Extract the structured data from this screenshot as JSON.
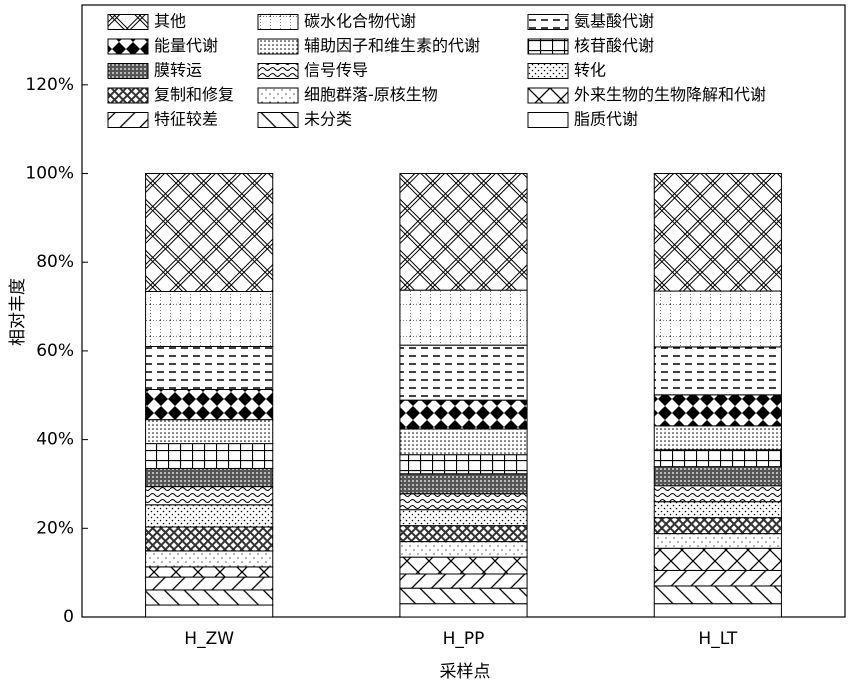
{
  "chart_data": {
    "type": "stacked_bar",
    "xlabel": "采样点",
    "ylabel": "相对丰度",
    "categories": [
      "H_ZW",
      "H_PP",
      "H_LT"
    ],
    "ylim": [
      0,
      138
    ],
    "yticks": [
      0,
      {
        "value": 20,
        "label": "20%"
      },
      {
        "value": 40,
        "label": "40%"
      },
      {
        "value": 60,
        "label": "60%"
      },
      {
        "value": 80,
        "label": "80%"
      },
      {
        "value": 100,
        "label": "100%"
      },
      {
        "value": 120,
        "label": "120%"
      }
    ],
    "legend": "upper left",
    "series": [
      {
        "name": "其他",
        "pattern": "crosshatch",
        "values": [
          26.6,
          26.3,
          26.5
        ]
      },
      {
        "name": "碳水化合物代谢",
        "pattern": "dotgrid",
        "values": [
          12.4,
          12.4,
          12.6
        ]
      },
      {
        "name": "氨基酸代谢",
        "pattern": "dash",
        "values": [
          9.7,
          12.4,
          10.8
        ]
      },
      {
        "name": "能量代谢",
        "pattern": "diamond",
        "values": [
          6.8,
          6.5,
          7.0
        ]
      },
      {
        "name": "辅助因子和维生素的代谢",
        "pattern": "dots",
        "values": [
          5.4,
          5.8,
          5.4
        ]
      },
      {
        "name": "核苷酸代谢",
        "pattern": "grid",
        "values": [
          5.6,
          4.3,
          3.8
        ]
      },
      {
        "name": "膜转运",
        "pattern": "dense",
        "values": [
          4.1,
          4.5,
          4.3
        ]
      },
      {
        "name": "信号传导",
        "pattern": "wave",
        "values": [
          4.1,
          3.6,
          3.6
        ]
      },
      {
        "name": "转化",
        "pattern": "sparsedots",
        "values": [
          5.0,
          3.6,
          3.6
        ]
      },
      {
        "name": "复制和修复",
        "pattern": "checker",
        "values": [
          5.4,
          3.6,
          3.6
        ]
      },
      {
        "name": "细胞群落-原核生物",
        "pattern": "finedots",
        "values": [
          3.6,
          3.5,
          3.3
        ]
      },
      {
        "name": "外来生物的生物降解和代谢",
        "pattern": "xcross",
        "values": [
          2.3,
          3.8,
          5.0
        ]
      },
      {
        "name": "特征较差",
        "pattern": "backslash",
        "values": [
          2.9,
          3.2,
          3.5
        ]
      },
      {
        "name": "未分类",
        "pattern": "slash",
        "values": [
          3.4,
          3.5,
          4.0
        ]
      },
      {
        "name": "脂质代谢",
        "pattern": "none",
        "values": [
          2.7,
          3.0,
          3.0
        ]
      }
    ]
  }
}
